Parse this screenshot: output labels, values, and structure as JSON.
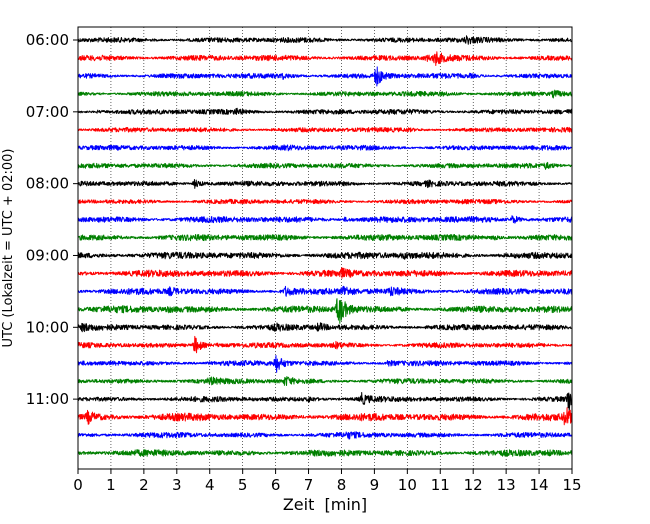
{
  "chart_data": {
    "type": "line",
    "title": "",
    "xlabel": "Zeit  [min]",
    "ylabel": "UTC (Lokalzeit = UTC + 02:00)",
    "xlim": [
      0,
      15
    ],
    "x_ticks": [
      "0",
      "1",
      "2",
      "3",
      "4",
      "5",
      "6",
      "7",
      "8",
      "9",
      "10",
      "11",
      "12",
      "13",
      "14",
      "15"
    ],
    "y_tick_labels": [
      "06:00",
      "07:00",
      "08:00",
      "09:00",
      "10:00",
      "11:00"
    ],
    "grid": "vertical dotted lines at each minute",
    "legend": "none",
    "trace_colors": [
      "#000000",
      "#ff0000",
      "#0000ff",
      "#008000"
    ],
    "series": [
      {
        "start": "06:00",
        "amplitude": 1.0,
        "events": [
          {
            "t": 11.8,
            "a": 1.6
          }
        ]
      },
      {
        "start": "06:15",
        "amplitude": 1.1,
        "events": [
          {
            "t": 10.85,
            "a": 2.2
          },
          {
            "t": 10.6,
            "a": 1.3
          }
        ]
      },
      {
        "start": "06:30",
        "amplitude": 1.0,
        "events": [
          {
            "t": 9.05,
            "a": 3.2
          },
          {
            "t": 6.2,
            "a": 1.5
          },
          {
            "t": 11.9,
            "a": 1.3
          }
        ]
      },
      {
        "start": "06:45",
        "amplitude": 0.95,
        "events": [
          {
            "t": 14.45,
            "a": 1.8
          },
          {
            "t": 11.1,
            "a": 1.2
          }
        ]
      },
      {
        "start": "07:00",
        "amplitude": 1.0,
        "events": [
          {
            "t": 4.8,
            "a": 1.4
          },
          {
            "t": 0.6,
            "a": 1.2
          }
        ]
      },
      {
        "start": "07:15",
        "amplitude": 0.9,
        "events": [
          {
            "t": 10.0,
            "a": 1.2
          }
        ]
      },
      {
        "start": "07:30",
        "amplitude": 0.95,
        "events": [
          {
            "t": 6.3,
            "a": 1.3
          }
        ]
      },
      {
        "start": "07:45",
        "amplitude": 0.95,
        "events": [
          {
            "t": 14.2,
            "a": 1.5
          }
        ]
      },
      {
        "start": "08:00",
        "amplitude": 1.0,
        "events": [
          {
            "t": 3.55,
            "a": 2.0
          },
          {
            "t": 10.6,
            "a": 1.4
          }
        ]
      },
      {
        "start": "08:15",
        "amplitude": 0.9,
        "events": [
          {
            "t": 11.6,
            "a": 1.2
          }
        ]
      },
      {
        "start": "08:30",
        "amplitude": 1.2,
        "events": [
          {
            "t": 13.2,
            "a": 1.8
          },
          {
            "t": 8.1,
            "a": 1.3
          }
        ]
      },
      {
        "start": "08:45",
        "amplitude": 1.2,
        "events": [
          {
            "t": 12.6,
            "a": 1.4
          }
        ]
      },
      {
        "start": "09:00",
        "amplitude": 1.3,
        "events": [
          {
            "t": 9.9,
            "a": 1.3
          }
        ]
      },
      {
        "start": "09:15",
        "amplitude": 1.3,
        "events": [
          {
            "t": 8.0,
            "a": 1.5
          }
        ]
      },
      {
        "start": "09:30",
        "amplitude": 1.2,
        "events": [
          {
            "t": 2.8,
            "a": 1.6
          },
          {
            "t": 6.3,
            "a": 1.8
          },
          {
            "t": 9.5,
            "a": 1.6
          },
          {
            "t": 8.05,
            "a": 2.0
          }
        ]
      },
      {
        "start": "09:45",
        "amplitude": 1.3,
        "events": [
          {
            "t": 7.9,
            "a": 4.0
          },
          {
            "t": 2.7,
            "a": 1.3
          }
        ]
      },
      {
        "start": "10:00",
        "amplitude": 1.1,
        "events": [
          {
            "t": 7.3,
            "a": 1.8
          },
          {
            "t": 0.15,
            "a": 1.5
          },
          {
            "t": 6.0,
            "a": 1.4
          }
        ]
      },
      {
        "start": "10:15",
        "amplitude": 1.0,
        "events": [
          {
            "t": 3.55,
            "a": 3.0
          },
          {
            "t": 4.2,
            "a": 1.3
          },
          {
            "t": 7.8,
            "a": 1.5
          }
        ]
      },
      {
        "start": "10:30",
        "amplitude": 1.0,
        "events": [
          {
            "t": 6.0,
            "a": 3.0
          },
          {
            "t": 9.4,
            "a": 1.6
          },
          {
            "t": 1.0,
            "a": 1.2
          }
        ]
      },
      {
        "start": "10:45",
        "amplitude": 1.0,
        "events": [
          {
            "t": 6.3,
            "a": 2.0
          },
          {
            "t": 4.0,
            "a": 1.6
          }
        ]
      },
      {
        "start": "11:00",
        "amplitude": 1.0,
        "events": [
          {
            "t": 8.6,
            "a": 2.2
          },
          {
            "t": 14.9,
            "a": 4.0
          },
          {
            "t": 7.0,
            "a": 1.5
          }
        ]
      },
      {
        "start": "11:15",
        "amplitude": 1.4,
        "events": [
          {
            "t": 0.3,
            "a": 1.8
          },
          {
            "t": 14.8,
            "a": 2.5
          }
        ]
      },
      {
        "start": "11:30",
        "amplitude": 1.0,
        "events": [
          {
            "t": 8.2,
            "a": 1.4
          }
        ]
      },
      {
        "start": "11:45",
        "amplitude": 1.2,
        "events": [
          {
            "t": 14.3,
            "a": 1.3
          }
        ]
      }
    ]
  }
}
